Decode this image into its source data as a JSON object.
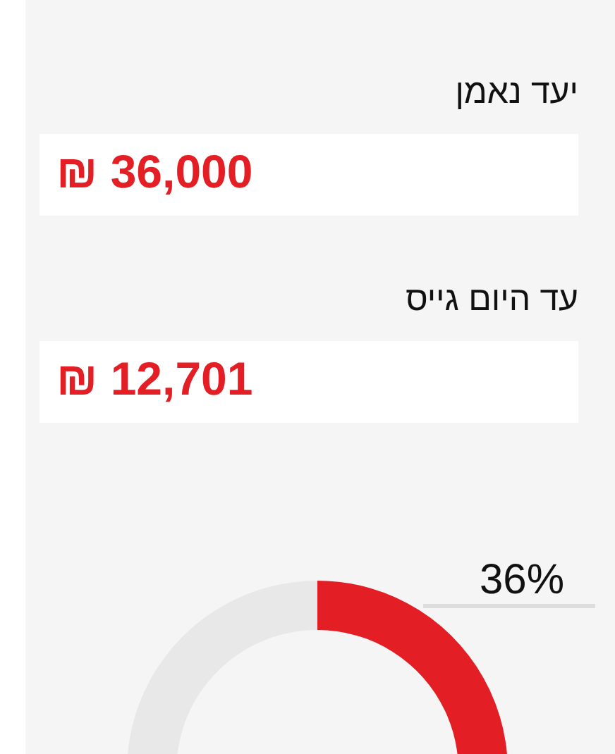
{
  "chart_data": {
    "type": "donut",
    "categories": [
      null,
      null
    ],
    "values": [
      36,
      64
    ],
    "colors": [
      "#e31e24",
      "#e8e8e8"
    ],
    "value_labels": [
      "36%",
      null
    ],
    "annotations": [
      "יעד נאמן",
      "₪ 36,000",
      "עד היום גייס",
      "₪ 12,701"
    ]
  }
}
